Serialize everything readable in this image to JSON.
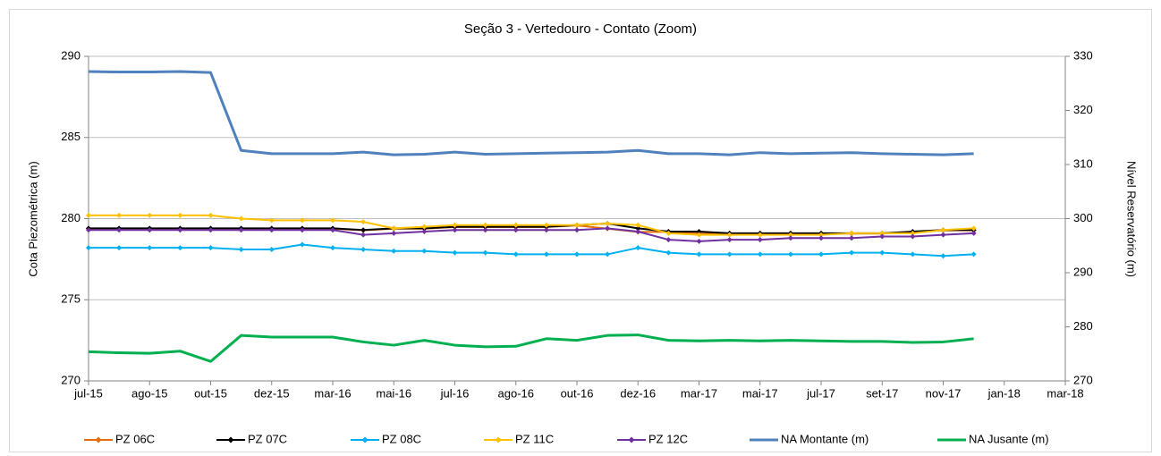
{
  "chart_data": {
    "type": "line",
    "title": "Seção 3 - Vertedouro - Contato (Zoom)",
    "ylabel": "Cota Piezométrica (m)",
    "y2label": "Nível Reservatório (m)",
    "categories": [
      "jul-15",
      null,
      "ago-15",
      null,
      "out-15",
      null,
      "dez-15",
      null,
      "mar-16",
      null,
      "mai-16",
      null,
      "jul-16",
      null,
      "ago-16",
      null,
      "out-16",
      null,
      "dez-16",
      null,
      "mar-17",
      null,
      "mai-17",
      null,
      "jul-17",
      null,
      "set-17",
      null,
      "nov-17",
      null,
      "jan-18",
      null,
      "mar-18"
    ],
    "ylim": [
      270,
      290
    ],
    "yticks": [
      270,
      275,
      280,
      285,
      290
    ],
    "y2lim": [
      270,
      330
    ],
    "y2ticks": [
      270,
      280,
      290,
      300,
      310,
      320,
      330
    ],
    "grid": true,
    "legend": "bottom",
    "series": [
      {
        "name": "PZ 06C",
        "color": "#e46c0a",
        "marker": "diamond",
        "values": [
          279.38,
          279.38,
          279.38,
          279.38,
          279.38,
          279.38,
          279.38,
          279.38,
          279.38,
          279.28,
          279.38,
          279.38,
          279.48,
          279.48,
          279.48,
          279.48,
          279.58,
          279.38,
          279.18,
          279.18,
          279.08,
          279.08,
          279.08,
          279.08,
          279.08,
          279.08,
          279.08,
          279.18,
          279.28,
          279.28,
          null,
          null,
          null
        ]
      },
      {
        "name": "PZ 07C",
        "color": "#000000",
        "marker": "diamond",
        "values": [
          279.4,
          279.4,
          279.4,
          279.4,
          279.4,
          279.4,
          279.4,
          279.4,
          279.4,
          279.3,
          279.4,
          279.4,
          279.5,
          279.5,
          279.5,
          279.5,
          279.6,
          279.7,
          279.4,
          279.2,
          279.2,
          279.1,
          279.1,
          279.1,
          279.1,
          279.1,
          279.1,
          279.2,
          279.3,
          279.3,
          null,
          null,
          null
        ]
      },
      {
        "name": "PZ 08C",
        "color": "#00b0f0",
        "marker": "diamond",
        "values": [
          278.2,
          278.2,
          278.2,
          278.2,
          278.2,
          278.1,
          278.1,
          278.4,
          278.2,
          278.1,
          278.0,
          278.0,
          277.9,
          277.9,
          277.8,
          277.8,
          277.8,
          277.8,
          278.2,
          277.9,
          277.8,
          277.8,
          277.8,
          277.8,
          277.8,
          277.9,
          277.9,
          277.8,
          277.7,
          277.8,
          null,
          null,
          null
        ]
      },
      {
        "name": "PZ 11C",
        "color": "#ffc000",
        "marker": "diamond",
        "values": [
          280.2,
          280.2,
          280.2,
          280.2,
          280.2,
          280.0,
          279.9,
          279.9,
          279.9,
          279.8,
          279.4,
          279.5,
          279.6,
          279.6,
          279.6,
          279.6,
          279.6,
          279.7,
          279.6,
          279.1,
          279.0,
          279.0,
          279.0,
          279.0,
          279.0,
          279.1,
          279.1,
          279.1,
          279.3,
          279.4,
          null,
          null,
          null
        ]
      },
      {
        "name": "PZ 12C",
        "color": "#7030a0",
        "marker": "diamond",
        "values": [
          279.3,
          279.3,
          279.3,
          279.3,
          279.3,
          279.3,
          279.3,
          279.3,
          279.3,
          279.0,
          279.1,
          279.2,
          279.3,
          279.3,
          279.3,
          279.3,
          279.3,
          279.4,
          279.2,
          278.7,
          278.6,
          278.7,
          278.7,
          278.8,
          278.8,
          278.8,
          278.9,
          278.9,
          279.0,
          279.1,
          null,
          null,
          null
        ]
      },
      {
        "name": "NA Montante (m)",
        "color": "#4f81bd",
        "axis": "y2",
        "values": [
          327.2,
          327.1,
          327.1,
          327.2,
          327.0,
          312.6,
          312.0,
          312.0,
          312.0,
          312.3,
          311.8,
          311.9,
          312.3,
          311.9,
          312.0,
          312.1,
          312.2,
          312.3,
          312.6,
          312.0,
          312.0,
          311.8,
          312.2,
          312.0,
          312.1,
          312.2,
          312.0,
          311.9,
          311.8,
          312.0,
          null,
          null,
          null
        ]
      },
      {
        "name": "NA Jusante (m)",
        "color": "#00b050",
        "axis": "y2",
        "values": [
          275.4,
          275.2,
          275.1,
          275.5,
          273.6,
          278.4,
          278.1,
          278.1,
          278.1,
          277.2,
          276.6,
          277.5,
          276.6,
          276.3,
          276.4,
          277.8,
          277.5,
          278.4,
          278.5,
          277.5,
          277.4,
          277.5,
          277.4,
          277.5,
          277.4,
          277.3,
          277.3,
          277.1,
          277.2,
          277.8,
          null,
          null,
          null
        ]
      }
    ]
  }
}
